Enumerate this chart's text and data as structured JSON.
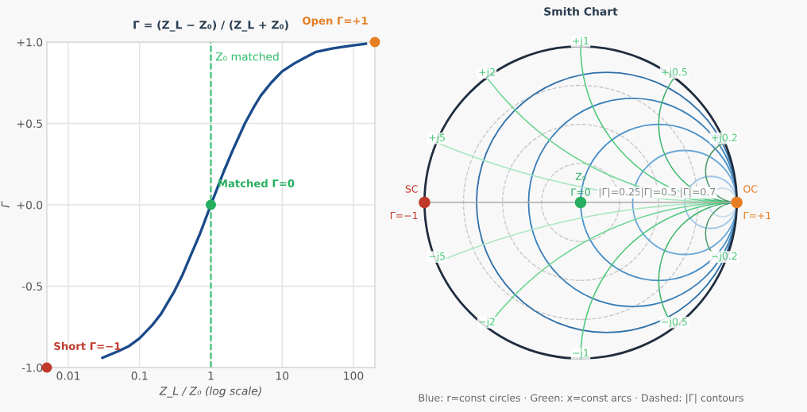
{
  "chart_data": [
    {
      "type": "line",
      "title": "Γ = (Z_L − Z₀) / (Z_L + Z₀)",
      "xlabel": "Z_L / Z₀ (log scale)",
      "ylabel": "Γ",
      "log": "x",
      "xlim": [
        0.005,
        200
      ],
      "xticks": [
        0.01,
        0.1,
        1,
        10,
        100
      ],
      "ylim": [
        -1,
        1
      ],
      "yticks": [
        {
          "value": -1,
          "label": "-1.0"
        },
        {
          "value": -0.5,
          "label": "-0.5"
        },
        {
          "value": 0,
          "label": "+0.0"
        },
        {
          "value": 0.5,
          "label": "+0.5"
        },
        {
          "value": 1,
          "label": "+1.0"
        }
      ],
      "grid": true,
      "line_style": "solid",
      "ref_lines": [
        {
          "axis": "x",
          "value": 1,
          "label": "Z₀ matched",
          "color": "#2ebd6b",
          "line_style": "dashed"
        }
      ],
      "series": [
        {
          "color": "#1a4a8a",
          "x": [
            0.03,
            0.05,
            0.07,
            0.1,
            0.15,
            0.2,
            0.3,
            0.4,
            0.5,
            0.7,
            1,
            1.5,
            2,
            3,
            4,
            5,
            7,
            10,
            15,
            20,
            30,
            50,
            70,
            100,
            150
          ],
          "values": [
            -0.94,
            -0.9,
            -0.87,
            -0.82,
            -0.74,
            -0.67,
            -0.54,
            -0.43,
            -0.33,
            -0.18,
            0,
            0.2,
            0.33,
            0.5,
            0.6,
            0.67,
            0.75,
            0.82,
            0.87,
            0.9,
            0.94,
            0.96,
            0.97,
            0.98,
            0.99
          ]
        },
        {
          "type": "scatter",
          "name": "Short Γ=−1",
          "color": "#c0392b",
          "marker": "circle",
          "x": [
            0.005
          ],
          "values": [
            -1
          ]
        },
        {
          "type": "scatter",
          "name": "Matched Γ=0",
          "color": "#27ae60",
          "marker": "circle",
          "x": [
            1
          ],
          "values": [
            0
          ]
        },
        {
          "type": "scatter",
          "name": "Open Γ=+1",
          "color": "#e67e22",
          "marker": "circle",
          "x": [
            200
          ],
          "values": [
            1
          ]
        }
      ]
    },
    {
      "type": "other",
      "title": "Smith Chart",
      "annotations": [
        "+j1",
        "+j2",
        "+j5",
        "+j0.5",
        "+j0.2",
        "−j1",
        "−j2",
        "−j5",
        "−j0.5",
        "−j0.2",
        "|Γ|=0.25",
        "|Γ|=0.5",
        "|Γ|=0.7",
        "Z₀",
        "Γ=0",
        "SC",
        "Γ=−1",
        "OC",
        "Γ=+1",
        "Blue: r=const circles · Green: x=const arcs · Dashed: |Γ| contours"
      ]
    }
  ]
}
